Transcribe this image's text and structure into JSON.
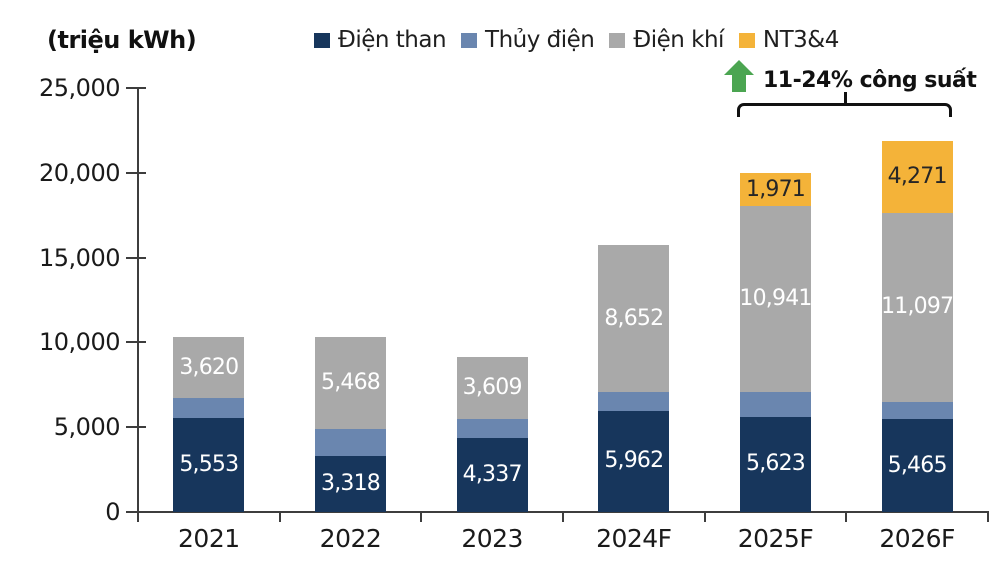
{
  "header": {
    "unit_label": "(triệu kWh)"
  },
  "annotation": {
    "text": "11-24% công suất",
    "arrow_icon": "green-up-arrow",
    "arrow_color": "#4ba551",
    "span_categories": [
      "2025F",
      "2026F"
    ]
  },
  "chart_data": {
    "type": "bar",
    "stacked": true,
    "title": "",
    "xlabel": "",
    "ylabel": "(triệu kWh)",
    "categories": [
      "2021",
      "2022",
      "2023",
      "2024F",
      "2025F",
      "2026F"
    ],
    "series": [
      {
        "name": "Điện than",
        "color": "#17365c",
        "values": [
          5553,
          3318,
          4337,
          5962,
          5623,
          5465
        ],
        "labels": [
          "5,553",
          "3,318",
          "4,337",
          "5,962",
          "5,623",
          "5,465"
        ],
        "label_color": "#ffffff"
      },
      {
        "name": "Thủy điện",
        "color": "#6a86af",
        "values": [
          1150,
          1550,
          1170,
          1100,
          1450,
          1050
        ],
        "labels": [
          "",
          "",
          "",
          "",
          "",
          ""
        ],
        "label_color": "#ffffff",
        "estimated": true
      },
      {
        "name": "Điện khí",
        "color": "#a9a9a9",
        "values": [
          3620,
          5468,
          3609,
          8652,
          10941,
          11097
        ],
        "labels": [
          "3,620",
          "5,468",
          "3,609",
          "8,652",
          "10,941",
          "11,097"
        ],
        "label_color": "#ffffff"
      },
      {
        "name": "NT3&4",
        "color": "#f4b339",
        "values": [
          0,
          0,
          0,
          0,
          1971,
          4271
        ],
        "labels": [
          "",
          "",
          "",
          "",
          "1,971",
          "4,271"
        ],
        "label_color": "#262626"
      }
    ],
    "ylim": [
      0,
      25000
    ],
    "y_tick_values": [
      0,
      5000,
      10000,
      15000,
      20000,
      25000
    ],
    "y_tick_labels": [
      "0",
      "5,000",
      "10,000",
      "15,000",
      "20,000",
      "25,000"
    ],
    "legend_position": "top",
    "grid": false
  }
}
